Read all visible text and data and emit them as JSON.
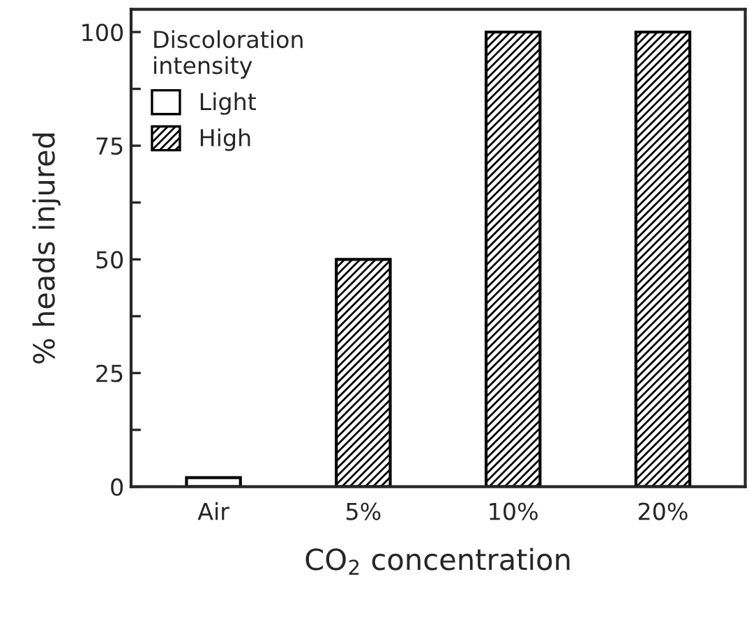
{
  "chart_data": {
    "type": "bar",
    "xlabel": "CO$_{2}$ concentration",
    "ylabel": "% heads injured",
    "legend_title": "Discoloration\nintensity",
    "categories": [
      "Air",
      "5%",
      "10%",
      "20%"
    ],
    "series": [
      {
        "name": "Light",
        "color": "#ffffff",
        "values": [
          2,
          null,
          null,
          null
        ]
      },
      {
        "name": "High",
        "color": "#000000",
        "values": [
          null,
          50,
          100,
          100
        ]
      }
    ],
    "ylim": [
      0,
      105
    ],
    "yticks": [
      0,
      {
        "value": 12.5,
        "label": null
      },
      25,
      {
        "value": 37.5,
        "label": null
      },
      50,
      {
        "value": 62.5,
        "label": null
      },
      75,
      {
        "value": 87.5,
        "label": null
      },
      100
    ],
    "legend": "top left",
    "grid": false
  }
}
